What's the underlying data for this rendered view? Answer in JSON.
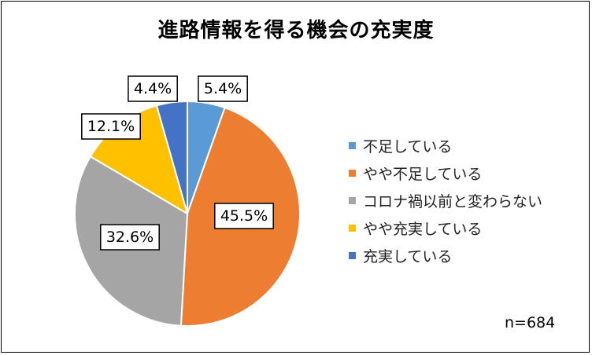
{
  "chart_data": {
    "type": "pie",
    "title": "進路情報を得る機会の充実度",
    "slices": [
      {
        "name": "不足している",
        "value": 5.4,
        "label": "5.4%",
        "color": "#5B9BD5"
      },
      {
        "name": "やや不足している",
        "value": 45.5,
        "label": "45.5%",
        "color": "#ED7D31"
      },
      {
        "name": "コロナ禍以前と変わらない",
        "value": 32.6,
        "label": "32.6%",
        "color": "#A5A5A5"
      },
      {
        "name": "やや充実している",
        "value": 12.1,
        "label": "12.1%",
        "color": "#FFC000"
      },
      {
        "name": "充実している",
        "value": 4.4,
        "label": "4.4%",
        "color": "#4472C4"
      }
    ],
    "legend_position": "right",
    "note": "n=684"
  }
}
